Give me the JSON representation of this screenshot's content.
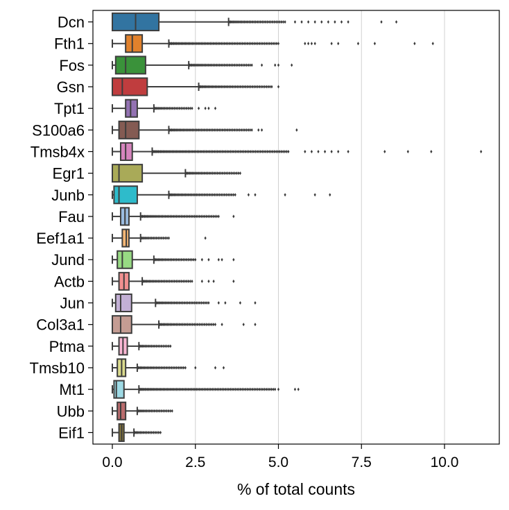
{
  "chart_data": {
    "type": "box",
    "orientation": "horizontal",
    "xlabel": "% of total counts",
    "ylabel": "",
    "title": "",
    "xlim": [
      -0.6,
      11.7
    ],
    "xticks": [
      0.0,
      2.5,
      5.0,
      7.5,
      10.0
    ],
    "xtick_labels": [
      "0.0",
      "2.5",
      "5.0",
      "7.5",
      "10.0"
    ],
    "grid": "vertical gridlines at x ticks",
    "legend": "none",
    "categories": [
      "Dcn",
      "Fth1",
      "Fos",
      "Gsn",
      "Tpt1",
      "S100a6",
      "Tmsb4x",
      "Egr1",
      "Junb",
      "Fau",
      "Eef1a1",
      "Jund",
      "Actb",
      "Jun",
      "Col3a1",
      "Ptma",
      "Tmsb10",
      "Mt1",
      "Ubb",
      "Eif1"
    ],
    "series": [
      {
        "category": "Dcn",
        "color": "#3274a1",
        "whislo": 0.0,
        "q1": 0.0,
        "med": 0.7,
        "q3": 1.4,
        "whishi": 3.5,
        "outlier_range": [
          3.5,
          5.2
        ],
        "extra_outliers": [
          5.5,
          5.7,
          5.9,
          6.1,
          6.3,
          6.5,
          6.7,
          6.9,
          7.1,
          8.1,
          8.55
        ]
      },
      {
        "category": "Fth1",
        "color": "#e1812c",
        "whislo": 0.0,
        "q1": 0.4,
        "med": 0.6,
        "q3": 0.9,
        "whishi": 1.7,
        "outlier_range": [
          1.7,
          5.0
        ],
        "extra_outliers": [
          5.8,
          5.9,
          6.0,
          6.1,
          6.6,
          6.8,
          7.4,
          7.9,
          9.1,
          9.65
        ]
      },
      {
        "category": "Fos",
        "color": "#3a923a",
        "whislo": 0.0,
        "q1": 0.1,
        "med": 0.4,
        "q3": 1.0,
        "whishi": 2.3,
        "outlier_range": [
          2.3,
          4.2
        ],
        "extra_outliers": [
          4.5,
          4.9,
          5.0,
          5.4
        ]
      },
      {
        "category": "Gsn",
        "color": "#c03d3e",
        "whislo": 0.0,
        "q1": 0.0,
        "med": 0.3,
        "q3": 1.05,
        "whishi": 2.6,
        "outlier_range": [
          2.6,
          4.8
        ],
        "extra_outliers": [
          5.0
        ]
      },
      {
        "category": "Tpt1",
        "color": "#9372b2",
        "whislo": 0.0,
        "q1": 0.4,
        "med": 0.55,
        "q3": 0.75,
        "whishi": 1.25,
        "outlier_range": [
          1.25,
          2.4
        ],
        "extra_outliers": [
          2.6,
          2.8,
          2.9,
          3.1
        ]
      },
      {
        "category": "S100a6",
        "color": "#845b53",
        "whislo": 0.0,
        "q1": 0.2,
        "med": 0.4,
        "q3": 0.8,
        "whishi": 1.7,
        "outlier_range": [
          1.7,
          4.2
        ],
        "extra_outliers": [
          4.4,
          4.5,
          5.55
        ]
      },
      {
        "category": "Tmsb4x",
        "color": "#d684bd",
        "whislo": 0.0,
        "q1": 0.25,
        "med": 0.4,
        "q3": 0.6,
        "whishi": 1.2,
        "outlier_range": [
          1.2,
          5.3
        ],
        "extra_outliers": [
          5.8,
          6.0,
          6.2,
          6.4,
          6.6,
          6.8,
          7.1,
          8.2,
          8.9,
          9.6,
          11.1
        ]
      },
      {
        "category": "Egr1",
        "color": "#a9aa58",
        "whislo": 0.0,
        "q1": 0.0,
        "med": 0.2,
        "q3": 0.9,
        "whishi": 2.2,
        "outlier_range": [
          2.2,
          3.85
        ],
        "extra_outliers": []
      },
      {
        "category": "Junb",
        "color": "#2ebbcb",
        "whislo": 0.0,
        "q1": 0.05,
        "med": 0.2,
        "q3": 0.75,
        "whishi": 1.7,
        "outlier_range": [
          1.7,
          3.7
        ],
        "extra_outliers": [
          4.1,
          4.3,
          5.2,
          6.1,
          6.55
        ]
      },
      {
        "category": "Fau",
        "color": "#9bbce0",
        "whislo": 0.0,
        "q1": 0.25,
        "med": 0.38,
        "q3": 0.5,
        "whishi": 0.85,
        "outlier_range": [
          0.85,
          3.2
        ],
        "extra_outliers": [
          3.65
        ]
      },
      {
        "category": "Eef1a1",
        "color": "#f5b776",
        "whislo": 0.0,
        "q1": 0.3,
        "med": 0.42,
        "q3": 0.5,
        "whishi": 0.85,
        "outlier_range": [
          0.85,
          1.7
        ],
        "extra_outliers": [
          2.8
        ]
      },
      {
        "category": "Jund",
        "color": "#97da83",
        "whislo": 0.0,
        "q1": 0.15,
        "med": 0.3,
        "q3": 0.6,
        "whishi": 1.25,
        "outlier_range": [
          1.25,
          2.5
        ],
        "extra_outliers": [
          2.7,
          2.9,
          3.2,
          3.3,
          3.65
        ]
      },
      {
        "category": "Actb",
        "color": "#f19090",
        "whislo": 0.0,
        "q1": 0.2,
        "med": 0.35,
        "q3": 0.5,
        "whishi": 0.9,
        "outlier_range": [
          0.9,
          2.4
        ],
        "extra_outliers": [
          2.7,
          2.9,
          3.05,
          3.65
        ]
      },
      {
        "category": "Jun",
        "color": "#c3b0d5",
        "whislo": 0.0,
        "q1": 0.1,
        "med": 0.25,
        "q3": 0.58,
        "whishi": 1.3,
        "outlier_range": [
          1.3,
          2.9
        ],
        "extra_outliers": [
          3.2,
          3.4,
          3.85,
          4.3
        ]
      },
      {
        "category": "Col3a1",
        "color": "#c49c93",
        "whislo": 0.0,
        "q1": 0.0,
        "med": 0.25,
        "q3": 0.58,
        "whishi": 1.4,
        "outlier_range": [
          1.4,
          3.1
        ],
        "extra_outliers": [
          3.3,
          3.95,
          4.3
        ]
      },
      {
        "category": "Ptma",
        "color": "#f8b6d2",
        "whislo": 0.0,
        "q1": 0.2,
        "med": 0.32,
        "q3": 0.45,
        "whishi": 0.8,
        "outlier_range": [
          0.8,
          1.75
        ],
        "extra_outliers": []
      },
      {
        "category": "Tmsb10",
        "color": "#dbdb8d",
        "whislo": 0.0,
        "q1": 0.15,
        "med": 0.28,
        "q3": 0.4,
        "whishi": 0.75,
        "outlier_range": [
          0.75,
          2.2
        ],
        "extra_outliers": [
          2.5,
          3.1,
          3.35
        ]
      },
      {
        "category": "Mt1",
        "color": "#9edae5",
        "whislo": 0.0,
        "q1": 0.05,
        "med": 0.12,
        "q3": 0.35,
        "whishi": 0.8,
        "outlier_range": [
          0.8,
          4.9
        ],
        "extra_outliers": [
          5.0,
          5.5,
          5.6
        ]
      },
      {
        "category": "Ubb",
        "color": "#ba6c6d",
        "whislo": 0.0,
        "q1": 0.15,
        "med": 0.25,
        "q3": 0.4,
        "whishi": 0.75,
        "outlier_range": [
          0.75,
          1.8
        ],
        "extra_outliers": []
      },
      {
        "category": "Eif1",
        "color": "#897a3c",
        "whislo": 0.0,
        "q1": 0.2,
        "med": 0.28,
        "q3": 0.35,
        "whishi": 0.65,
        "outlier_range": [
          0.65,
          1.45
        ],
        "extra_outliers": []
      }
    ]
  }
}
